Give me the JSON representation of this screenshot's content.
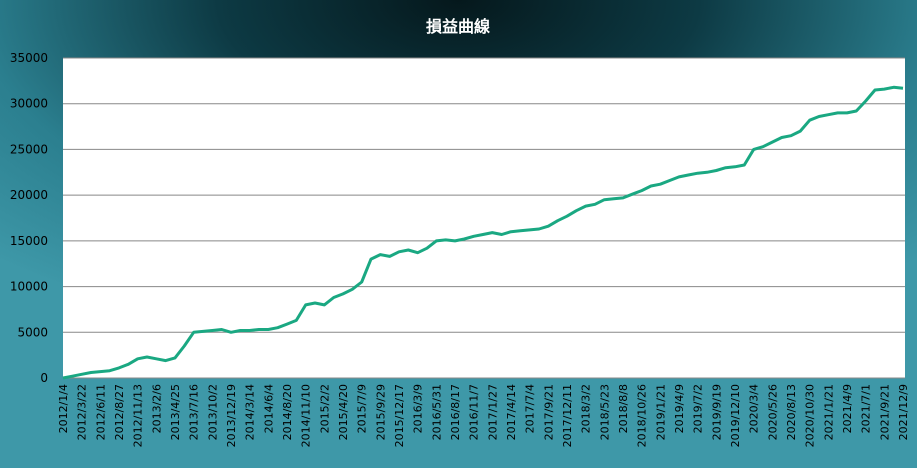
{
  "chart_data": {
    "type": "line",
    "title": "損益曲線",
    "categories": [
      "2012/1/4",
      null,
      "2012/3/22",
      null,
      "2012/6/11",
      null,
      "2012/8/27",
      null,
      "2012/11/13",
      null,
      "2013/2/6",
      null,
      "2013/4/25",
      null,
      "2013/7/16",
      null,
      "2013/10/2",
      null,
      "2013/12/19",
      null,
      "2014/3/14",
      null,
      "2014/6/4",
      null,
      "2014/8/20",
      null,
      "2014/11/10",
      null,
      "2015/2/2",
      null,
      "2015/4/20",
      null,
      "2015/7/9",
      null,
      "2015/9/29",
      null,
      "2015/12/17",
      null,
      "2016/3/9",
      null,
      "2016/5/31",
      null,
      "2016/8/17",
      null,
      "2016/11/7",
      null,
      "2017/1/27",
      null,
      "2017/4/14",
      null,
      "2017/7/4",
      null,
      "2017/9/21",
      null,
      "2017/12/11",
      null,
      "2018/3/2",
      null,
      "2018/5/23",
      null,
      "2018/8/8",
      null,
      "2018/10/26",
      null,
      "2019/1/21",
      null,
      "2019/4/9",
      null,
      "2019/7/2",
      null,
      "2019/9/19",
      null,
      "2019/12/10",
      null,
      "2020/3/4",
      null,
      "2020/5/26",
      null,
      "2020/8/13",
      null,
      "2020/10/30",
      null,
      "2021/1/21",
      null,
      "2021/4/9",
      null,
      "2021/7/1",
      null,
      "2021/9/21",
      null,
      "2021/12/9"
    ],
    "values": [
      0,
      200,
      400,
      600,
      700,
      800,
      1100,
      1500,
      2100,
      2300,
      2100,
      1900,
      2200,
      3500,
      5000,
      5100,
      5200,
      5300,
      5000,
      5200,
      5200,
      5300,
      5300,
      5500,
      5900,
      6300,
      8000,
      8200,
      8000,
      8800,
      9200,
      9700,
      10500,
      13000,
      13500,
      13300,
      13800,
      14000,
      13700,
      14200,
      15000,
      15100,
      15000,
      15200,
      15500,
      15700,
      15900,
      15700,
      16000,
      16100,
      16200,
      16300,
      16600,
      17200,
      17700,
      18300,
      18800,
      19000,
      19500,
      19600,
      19700,
      20100,
      20500,
      21000,
      21200,
      21600,
      22000,
      22200,
      22400,
      22500,
      22700,
      23000,
      23100,
      23300,
      25000,
      25300,
      25800,
      26300,
      26500,
      27000,
      28200,
      28600,
      28800,
      29000,
      29000,
      29200,
      30300,
      31500,
      31600,
      31800,
      31700
    ],
    "color": "#1aa882",
    "ylim": [
      0,
      35000
    ],
    "yticks": [
      0,
      5000,
      10000,
      15000,
      20000,
      25000,
      30000,
      35000
    ],
    "grid": true
  }
}
